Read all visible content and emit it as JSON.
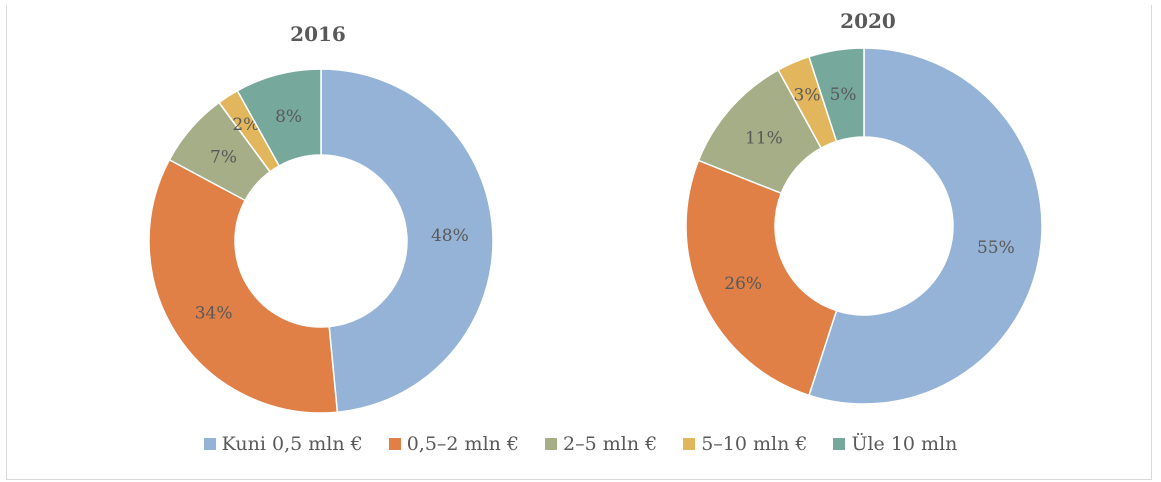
{
  "chart_data": [
    {
      "type": "pie",
      "variant": "donut",
      "title": "2016",
      "categories": [
        "Kuni 0,5 mln €",
        "0,5–2 mln €",
        "2–5 mln €",
        "5–10 mln €",
        "Üle 10 mln"
      ],
      "values": [
        48,
        34,
        7,
        2,
        8
      ],
      "labels": [
        "48%",
        "34%",
        "7%",
        "2%",
        "8%"
      ],
      "unit": "%"
    },
    {
      "type": "pie",
      "variant": "donut",
      "title": "2020",
      "categories": [
        "Kuni 0,5 mln €",
        "0,5–2 mln €",
        "2–5 mln €",
        "5–10 mln €",
        "Üle 10 mln"
      ],
      "values": [
        55,
        26,
        11,
        3,
        5
      ],
      "labels": [
        "55%",
        "26%",
        "11%",
        "3%",
        "5%"
      ],
      "unit": "%"
    }
  ],
  "legend": {
    "placement": "bottom",
    "items": [
      {
        "label": "Kuni 0,5 mln €",
        "color": "#95b3d7"
      },
      {
        "label": "0,5–2 mln €",
        "color": "#e07f46"
      },
      {
        "label": "2–5 mln €",
        "color": "#a5ae86"
      },
      {
        "label": "5–10 mln €",
        "color": "#e2b65c"
      },
      {
        "label": "Üle 10 mln",
        "color": "#77a89c"
      }
    ]
  },
  "colors": [
    "#95b3d7",
    "#e07f46",
    "#a5ae86",
    "#e2b65c",
    "#77a89c"
  ]
}
